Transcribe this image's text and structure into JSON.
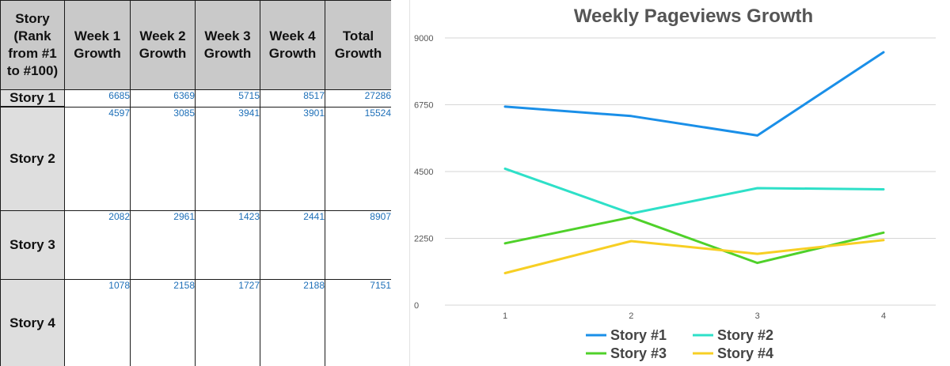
{
  "table": {
    "headers": [
      "Story\n(Rank\nfrom #1\nto #100)",
      "Week 1\nGrowth",
      "Week 2\nGrowth",
      "Week 3\nGrowth",
      "Week 4\nGrowth",
      "Total\nGrowth"
    ],
    "rows": [
      {
        "label": "Story 1",
        "values": [
          "6685",
          "6369",
          "5715",
          "8517",
          "27286"
        ]
      },
      {
        "label": "Story 2",
        "values": [
          "4597",
          "3085",
          "3941",
          "3901",
          "15524"
        ]
      },
      {
        "label": "Story 3",
        "values": [
          "2082",
          "2961",
          "1423",
          "2441",
          "8907"
        ]
      },
      {
        "label": "Story 4",
        "values": [
          "1078",
          "2158",
          "1727",
          "2188",
          "7151"
        ]
      }
    ]
  },
  "chart_data": {
    "type": "line",
    "title": "Weekly Pageviews Growth",
    "x": [
      1,
      2,
      3,
      4
    ],
    "x_tick_labels": [
      "1",
      "2",
      "3",
      "4"
    ],
    "y_ticks": [
      0,
      2250,
      4500,
      6750,
      9000
    ],
    "y_tick_labels": [
      "0",
      "2250",
      "4500",
      "6750",
      "9000"
    ],
    "ylim": [
      0,
      9000
    ],
    "grid": true,
    "legend_position": "bottom",
    "series": [
      {
        "name": "Story #1",
        "color": "#1a8fe8",
        "values": [
          6685,
          6369,
          5715,
          8517
        ]
      },
      {
        "name": "Story #2",
        "color": "#2ee0c8",
        "values": [
          4597,
          3085,
          3941,
          3901
        ]
      },
      {
        "name": "Story #3",
        "color": "#4fd12a",
        "values": [
          2082,
          2961,
          1423,
          2441
        ]
      },
      {
        "name": "Story #4",
        "color": "#f7cf24",
        "values": [
          1078,
          2158,
          1727,
          2188
        ]
      }
    ]
  }
}
